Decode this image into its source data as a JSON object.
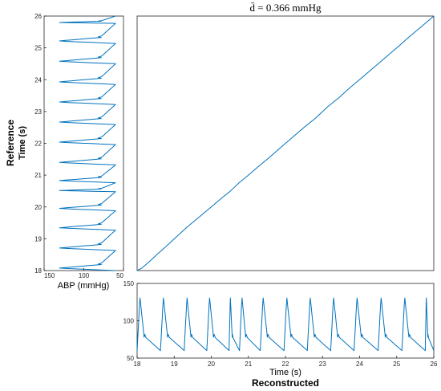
{
  "labels": {
    "title": "d̄ = 0.366 mmHg",
    "reference": "Reference",
    "reconstructed": "Reconstructed",
    "time_s_left": "Time (s)",
    "time_s_bottom": "Time (s)",
    "abp": "ABP (mmHg)"
  },
  "chart_data": [
    {
      "name": "main",
      "type": "line",
      "title": "d̄ = 0.366 mmHg",
      "xlabel": "",
      "ylabel": "",
      "xlim": [
        18,
        26
      ],
      "ylim": [
        18,
        26
      ],
      "grid": false,
      "series": [
        {
          "x": [
            18.0,
            18.13,
            18.3,
            18.55,
            18.8,
            19.05,
            19.35,
            19.65,
            20.0,
            20.3,
            20.5,
            20.75,
            21.0,
            21.3,
            21.55,
            21.9,
            22.2,
            22.5,
            22.8,
            23.15,
            23.45,
            23.75,
            24.1,
            24.4,
            24.7,
            25.05,
            25.35,
            25.7,
            26.0
          ],
          "y": [
            18.0,
            18.08,
            18.25,
            18.52,
            18.78,
            19.05,
            19.37,
            19.66,
            20.0,
            20.3,
            20.48,
            20.76,
            21.0,
            21.3,
            21.54,
            21.9,
            22.2,
            22.5,
            22.78,
            23.16,
            23.44,
            23.76,
            24.1,
            24.4,
            24.7,
            25.05,
            25.36,
            25.7,
            26.0
          ]
        }
      ]
    },
    {
      "name": "reference",
      "type": "line",
      "orientation": "vertical",
      "xlabel": "ABP (mmHg)",
      "ylabel": "Time (s)",
      "xlim": [
        150,
        50
      ],
      "ylim": [
        18,
        26
      ],
      "xticks": [
        150,
        100,
        50
      ],
      "yticks": [
        18,
        19,
        20,
        21,
        22,
        23,
        24,
        25,
        26
      ],
      "beats": [
        18.0,
        18.63,
        19.27,
        19.88,
        20.48,
        20.76,
        21.32,
        21.96,
        22.59,
        23.22,
        23.85,
        24.5,
        25.14,
        25.77
      ],
      "series": [
        {
          "systolic": 132,
          "diastolic": 60,
          "notch": 78
        }
      ]
    },
    {
      "name": "reconstructed",
      "type": "line",
      "xlabel": "Time (s)",
      "ylabel": "",
      "xlim": [
        18,
        26
      ],
      "ylim": [
        50,
        150
      ],
      "xticks": [
        18,
        19,
        20,
        21,
        22,
        23,
        24,
        25,
        26
      ],
      "yticks": [
        50,
        100,
        150
      ],
      "beats": [
        18.0,
        18.63,
        19.27,
        19.88,
        20.48,
        20.76,
        21.32,
        21.96,
        22.59,
        23.22,
        23.85,
        24.5,
        25.14,
        25.77
      ],
      "series": [
        {
          "systolic": 132,
          "diastolic": 60,
          "notch": 78
        }
      ]
    }
  ]
}
